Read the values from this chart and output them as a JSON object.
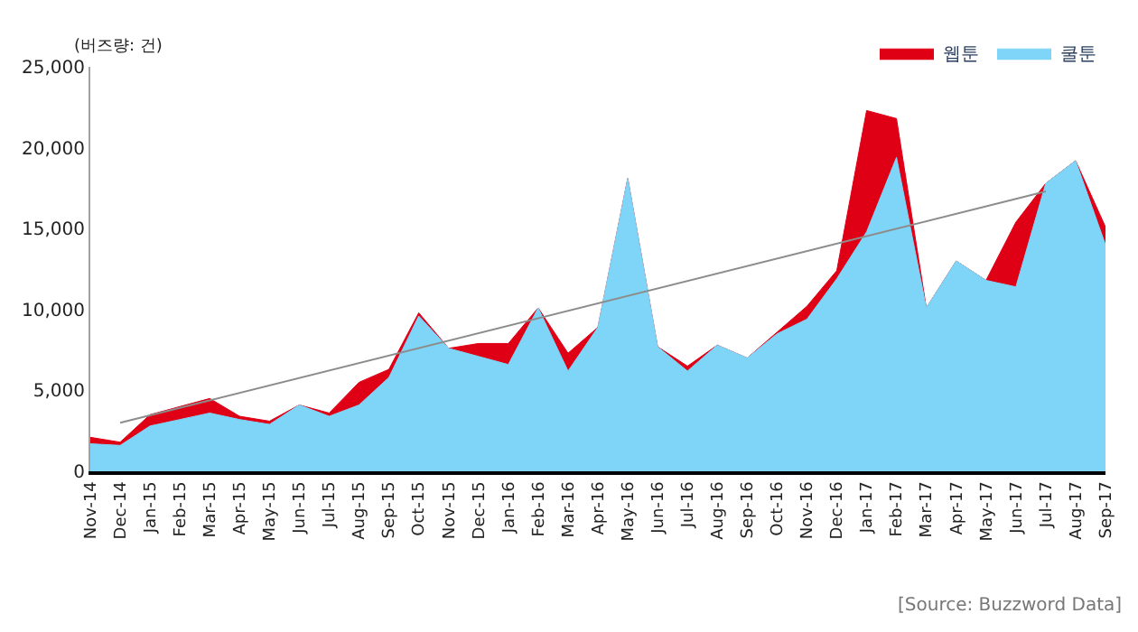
{
  "chart_data": {
    "type": "area",
    "ylabel": "(버즈량: 건)",
    "categories": [
      "Nov-14",
      "Dec-14",
      "Jan-15",
      "Feb-15",
      "Mar-15",
      "Apr-15",
      "May-15",
      "Jun-15",
      "Jul-15",
      "Aug-15",
      "Sep-15",
      "Oct-15",
      "Nov-15",
      "Dec-15",
      "Jan-16",
      "Feb-16",
      "Mar-16",
      "Apr-16",
      "May-16",
      "Jun-16",
      "Jul-16",
      "Aug-16",
      "Sep-16",
      "Oct-16",
      "Nov-16",
      "Dec-16",
      "Jan-17",
      "Feb-17",
      "Mar-17",
      "Apr-17",
      "May-17",
      "Jun-17",
      "Jul-17",
      "Aug-17",
      "Sep-17"
    ],
    "series": [
      {
        "name": "웹툰",
        "color": "#e00016",
        "values": [
          2100,
          1800,
          3500,
          4000,
          4500,
          3400,
          3100,
          4100,
          3600,
          5500,
          6300,
          9800,
          7600,
          7900,
          7900,
          10100,
          7300,
          8900,
          18100,
          7700,
          6500,
          7800,
          7000,
          8600,
          10200,
          12400,
          22300,
          21800,
          10100,
          13000,
          11800,
          15400,
          17800,
          19200,
          15100
        ]
      },
      {
        "name": "쿨툰",
        "color": "#7fd5f7",
        "values": [
          1700,
          1600,
          2800,
          3200,
          3600,
          3200,
          2900,
          4100,
          3400,
          4100,
          5800,
          9600,
          7600,
          7100,
          6600,
          10100,
          6200,
          8900,
          18100,
          7700,
          6200,
          7800,
          7000,
          8500,
          9400,
          11900,
          14800,
          19400,
          10100,
          13000,
          11800,
          11400,
          17800,
          19200,
          14000
        ]
      },
      {
        "type": "line",
        "color": "#8c8c8c",
        "x": [
          "Dec-14",
          "Jul-17"
        ],
        "values": [
          3000,
          17300
        ]
      }
    ],
    "ylim": [
      0,
      25000
    ],
    "yticks": [
      {
        "value": 0,
        "label": "0"
      },
      {
        "value": 5000,
        "label": "5,000"
      },
      {
        "value": 10000,
        "label": "10,000"
      },
      {
        "value": 15000,
        "label": "15,000"
      },
      {
        "value": 20000,
        "label": "20,000"
      },
      {
        "value": 25000,
        "label": "25,000"
      }
    ],
    "legend": "top right",
    "annotations": [
      "[Source: Buzzword Data]"
    ]
  }
}
